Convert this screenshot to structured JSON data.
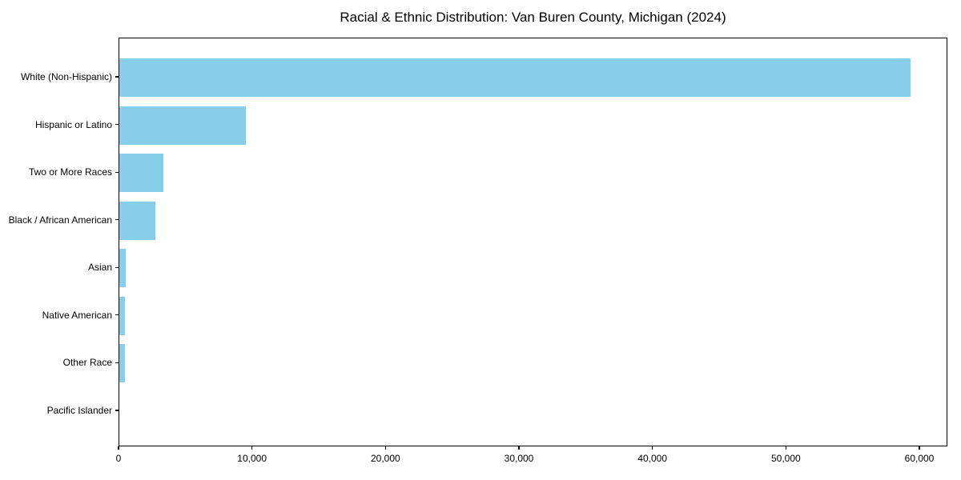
{
  "chart_data": {
    "type": "bar",
    "orientation": "horizontal",
    "title": "Racial & Ethnic Distribution: Van Buren County, Michigan (2024)",
    "categories": [
      "White (Non-Hispanic)",
      "Hispanic or Latino",
      "Two or More Races",
      "Black / African American",
      "Asian",
      "Native American",
      "Other Race",
      "Pacific Islander"
    ],
    "values": [
      59300,
      9500,
      3300,
      2700,
      450,
      400,
      400,
      0
    ],
    "xlabel": "",
    "ylabel": "",
    "xlim": [
      0,
      62100
    ],
    "x_ticks": [
      0,
      10000,
      20000,
      30000,
      40000,
      50000,
      60000
    ],
    "x_tick_labels": [
      "0",
      "10,000",
      "20,000",
      "30,000",
      "40,000",
      "50,000",
      "60,000"
    ],
    "bar_color": "#87CEEB",
    "axis_color": "#000000",
    "text_color": "#000000",
    "background_color": "#FFFFFF",
    "grid": false,
    "legend": null
  }
}
